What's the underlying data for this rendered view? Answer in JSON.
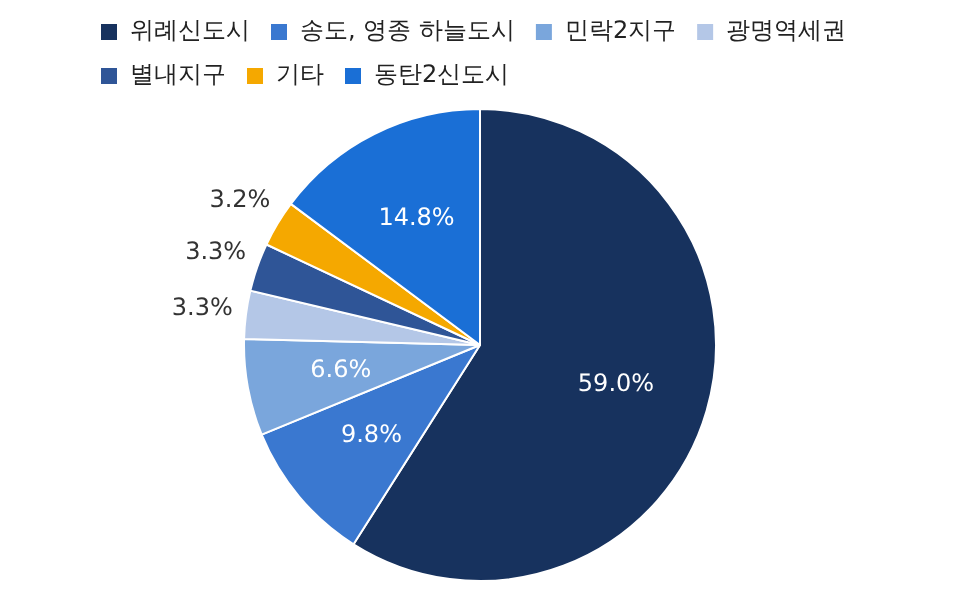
{
  "chart_data": {
    "type": "pie",
    "categories": [
      "위례신도시",
      "송도, 영종 하늘도시",
      "민락2지구",
      "광명역세권",
      "별내지구",
      "기타",
      "동탄2신도시"
    ],
    "values": [
      59.0,
      9.8,
      6.6,
      3.3,
      3.3,
      3.2,
      14.8
    ],
    "colors": [
      "#17325e",
      "#3a78d0",
      "#7aa6dc",
      "#b4c7e7",
      "#2f5597",
      "#f5a800",
      "#1a6fd6"
    ],
    "value_labels": [
      "59.0%",
      "9.8%",
      "6.6%",
      "3.3%",
      "3.3%",
      "3.2%",
      "14.8%"
    ],
    "legend": "top"
  }
}
